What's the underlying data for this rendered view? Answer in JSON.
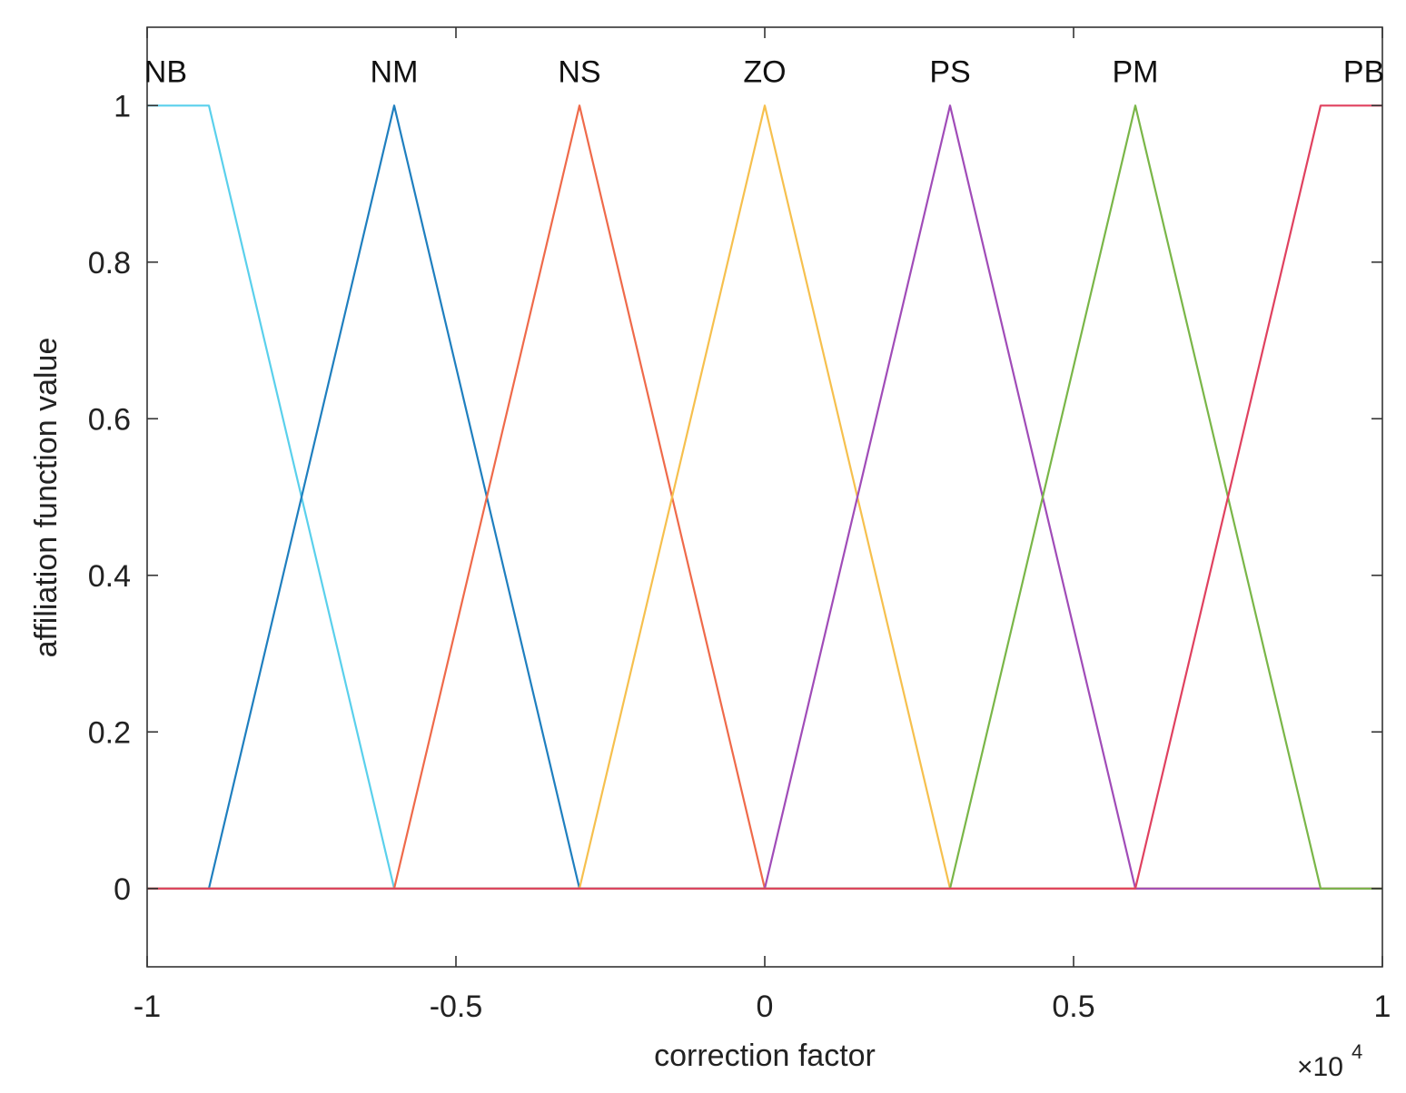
{
  "chart_data": {
    "type": "line",
    "title": "",
    "xlabel": "correction factor",
    "ylabel": "affiliation function value",
    "x_multiplier_prefix": "×10",
    "x_multiplier_exponent": "4",
    "xlim": [
      -1,
      1
    ],
    "ylim": [
      -0.1,
      1.1
    ],
    "grid": false,
    "xticks": [
      -1,
      -0.5,
      0,
      0.5,
      1
    ],
    "xtick_labels": [
      "-1",
      "-0.5",
      "0",
      "0.5",
      "1"
    ],
    "yticks": [
      0,
      0.2,
      0.4,
      0.6,
      0.8,
      1
    ],
    "ytick_labels": [
      "0",
      "0.2",
      "0.4",
      "0.6",
      "0.8",
      "1"
    ],
    "series": [
      {
        "name": "NB",
        "color": "#5ad0ec",
        "x": [
          -1,
          -0.9,
          -0.6,
          1
        ],
        "y": [
          1,
          1,
          0,
          0
        ],
        "label_x": -0.97
      },
      {
        "name": "NM",
        "color": "#1f7fbf",
        "x": [
          -1,
          -0.9,
          -0.6,
          -0.3,
          1
        ],
        "y": [
          0,
          0,
          1,
          0,
          0
        ],
        "label_x": -0.6
      },
      {
        "name": "NS",
        "color": "#ef6a4a",
        "x": [
          -1,
          -0.6,
          -0.3,
          0,
          1
        ],
        "y": [
          0,
          0,
          1,
          0,
          0
        ],
        "label_x": -0.3
      },
      {
        "name": "ZO",
        "color": "#f6c04e",
        "x": [
          -1,
          -0.3,
          0,
          0.3,
          1
        ],
        "y": [
          0,
          0,
          1,
          0,
          0
        ],
        "label_x": 0
      },
      {
        "name": "PS",
        "color": "#a04cb8",
        "x": [
          -1,
          0,
          0.3,
          0.6,
          1
        ],
        "y": [
          0,
          0,
          1,
          0,
          0
        ],
        "label_x": 0.3
      },
      {
        "name": "PM",
        "color": "#7ab648",
        "x": [
          -1,
          0.3,
          0.6,
          0.9,
          1
        ],
        "y": [
          0,
          0,
          1,
          0,
          0
        ],
        "label_x": 0.6
      },
      {
        "name": "PB",
        "color": "#e0415f",
        "x": [
          -1,
          0.6,
          0.9,
          1
        ],
        "y": [
          0,
          0,
          1,
          1
        ],
        "label_x": 0.97
      }
    ]
  }
}
